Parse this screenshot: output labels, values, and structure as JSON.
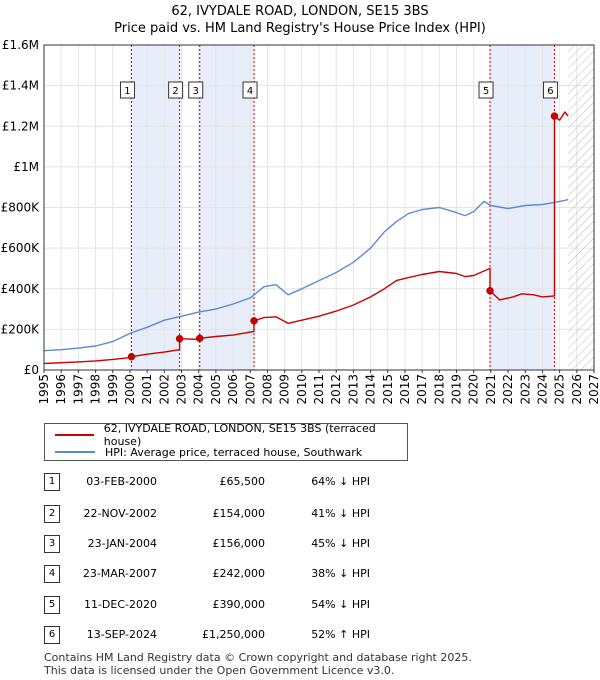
{
  "title_line1": "62, IVYDALE ROAD, LONDON, SE15 3BS",
  "title_line2": "Price paid vs. HM Land Registry's House Price Index (HPI)",
  "chart_data": {
    "type": "line",
    "ylim": [
      0,
      1600000
    ],
    "xlim": [
      1995,
      2027
    ],
    "y_ticks": [
      0,
      200000,
      400000,
      600000,
      800000,
      1000000,
      1200000,
      1400000,
      1600000
    ],
    "y_tick_labels": [
      "£0",
      "£200K",
      "£400K",
      "£600K",
      "£800K",
      "£1M",
      "£1.2M",
      "£1.4M",
      "£1.6M"
    ],
    "x_ticks": [
      1995,
      1996,
      1997,
      1998,
      1999,
      2000,
      2001,
      2002,
      2003,
      2004,
      2005,
      2006,
      2007,
      2008,
      2009,
      2010,
      2011,
      2012,
      2013,
      2014,
      2015,
      2016,
      2017,
      2018,
      2019,
      2020,
      2021,
      2022,
      2023,
      2024,
      2025,
      2026,
      2027
    ],
    "hatch_from": 2025.5,
    "series": [
      {
        "name": "62, IVYDALE ROAD, LONDON, SE15 3BS (terraced house)",
        "color": "#cc0000",
        "x": [
          1995.0,
          1996.0,
          1997.0,
          1998.0,
          1999.0,
          2000.09,
          2000.09,
          2001.0,
          2002.0,
          2002.89,
          2002.89,
          2003.5,
          2004.06,
          2004.06,
          2005.0,
          2006.0,
          2007.22,
          2007.22,
          2007.8,
          2008.5,
          2009.2,
          2010.0,
          2011.0,
          2012.0,
          2013.0,
          2014.0,
          2014.8,
          2015.5,
          2016.2,
          2017.0,
          2018.0,
          2019.0,
          2019.5,
          2020.0,
          2020.95,
          2020.95,
          2021.5,
          2022.3,
          2022.8,
          2023.5,
          2024.0,
          2024.7,
          2024.7,
          2025.0,
          2025.3,
          2025.5
        ],
        "y": [
          32000,
          36000,
          40000,
          45000,
          52000,
          62000,
          65500,
          78000,
          88000,
          100000,
          154000,
          152000,
          150000,
          156000,
          165000,
          172000,
          190000,
          242000,
          258000,
          262000,
          230000,
          245000,
          265000,
          290000,
          320000,
          360000,
          400000,
          440000,
          455000,
          470000,
          485000,
          475000,
          460000,
          465000,
          500000,
          390000,
          345000,
          360000,
          375000,
          370000,
          360000,
          365000,
          1250000,
          1230000,
          1270000,
          1250000
        ]
      },
      {
        "name": "HPI: Average price, terraced house, Southwark",
        "color": "#5b8ccf",
        "x": [
          1995.0,
          1996.0,
          1997.0,
          1998.0,
          1999.0,
          2000.0,
          2001.0,
          2002.0,
          2003.0,
          2004.0,
          2005.0,
          2006.0,
          2007.0,
          2007.8,
          2008.5,
          2009.2,
          2010.0,
          2011.0,
          2012.0,
          2013.0,
          2014.0,
          2014.8,
          2015.5,
          2016.2,
          2017.0,
          2018.0,
          2019.0,
          2019.5,
          2020.0,
          2020.6,
          2021.0,
          2022.0,
          2023.0,
          2024.0,
          2024.7,
          2025.0,
          2025.3,
          2025.5
        ],
        "y": [
          95000,
          100000,
          108000,
          118000,
          140000,
          180000,
          210000,
          245000,
          265000,
          285000,
          300000,
          325000,
          355000,
          410000,
          420000,
          370000,
          400000,
          440000,
          480000,
          530000,
          600000,
          680000,
          730000,
          770000,
          790000,
          800000,
          775000,
          760000,
          780000,
          830000,
          810000,
          795000,
          810000,
          815000,
          825000,
          830000,
          835000,
          840000
        ]
      }
    ],
    "markers": [
      {
        "label": "1",
        "x": 2000.09,
        "y": 65500
      },
      {
        "label": "2",
        "x": 2002.89,
        "y": 154000
      },
      {
        "label": "3",
        "x": 2004.06,
        "y": 156000
      },
      {
        "label": "4",
        "x": 2007.22,
        "y": 242000
      },
      {
        "label": "5",
        "x": 2020.95,
        "y": 390000
      },
      {
        "label": "6",
        "x": 2024.7,
        "y": 1250000
      }
    ]
  },
  "legend": {
    "property_label": "62, IVYDALE ROAD, LONDON, SE15 3BS (terraced house)",
    "hpi_label": "HPI: Average price, terraced house, Southwark",
    "property_color": "#cc0000",
    "hpi_color": "#5b8ccf"
  },
  "transactions": [
    {
      "num": "1",
      "date": "03-FEB-2000",
      "price": "£65,500",
      "hpi": "64% ↓ HPI"
    },
    {
      "num": "2",
      "date": "22-NOV-2002",
      "price": "£154,000",
      "hpi": "41% ↓ HPI"
    },
    {
      "num": "3",
      "date": "23-JAN-2004",
      "price": "£156,000",
      "hpi": "45% ↓ HPI"
    },
    {
      "num": "4",
      "date": "23-MAR-2007",
      "price": "£242,000",
      "hpi": "38% ↓ HPI"
    },
    {
      "num": "5",
      "date": "11-DEC-2020",
      "price": "£390,000",
      "hpi": "54% ↓ HPI"
    },
    {
      "num": "6",
      "date": "13-SEP-2024",
      "price": "£1,250,000",
      "hpi": "52% ↑ HPI"
    }
  ],
  "footer_line1": "Contains HM Land Registry data © Crown copyright and database right 2025.",
  "footer_line2": "This data is licensed under the Open Government Licence v3.0."
}
